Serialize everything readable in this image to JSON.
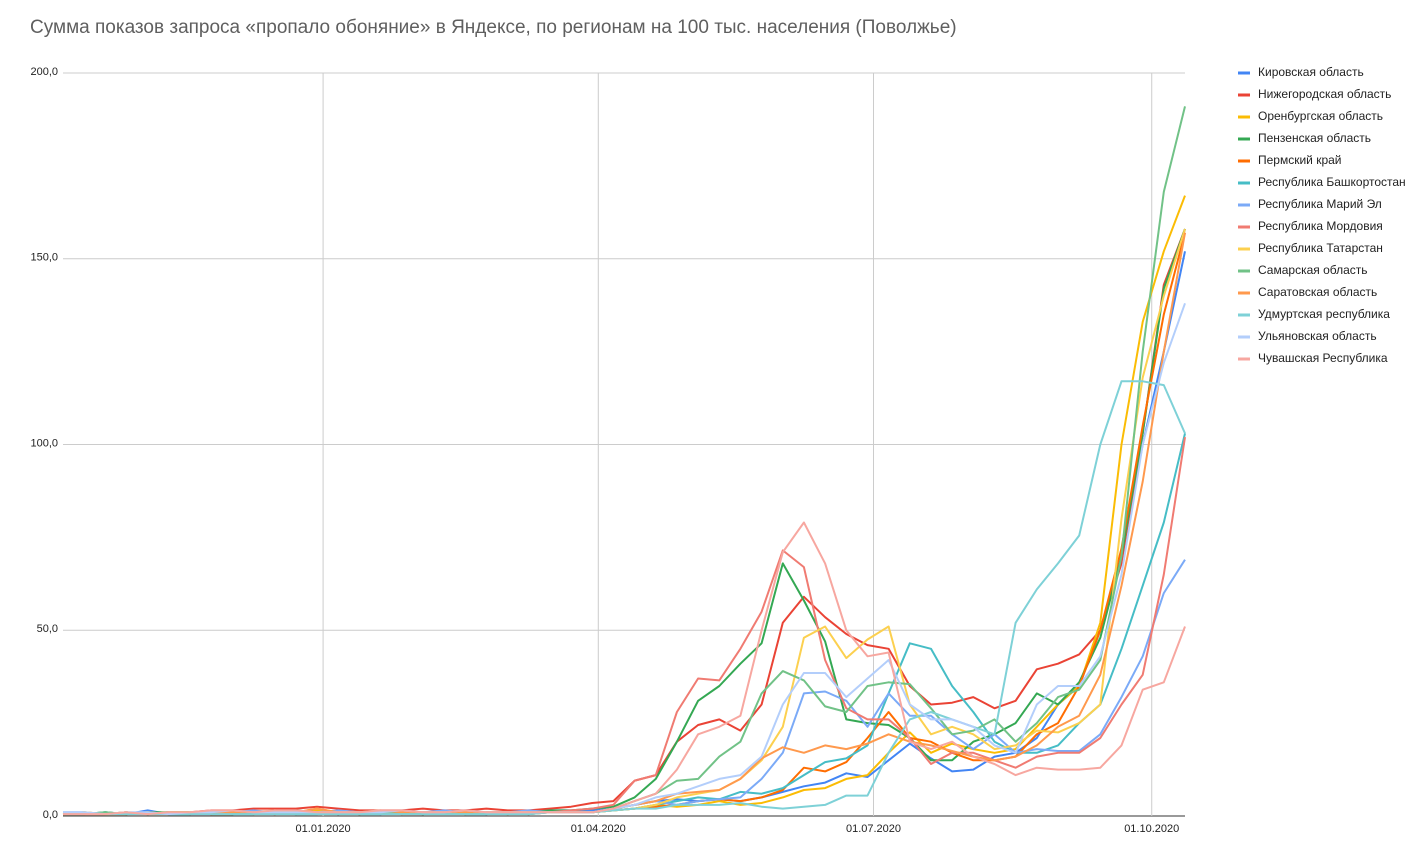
{
  "chart_data": {
    "type": "line",
    "title": "Сумма показов запроса «пропало обоняние» в Яндексе, по регионам на 100 тыс. населения (Поволжье)",
    "x": [
      "2019-10-07",
      "2019-10-14",
      "2019-10-21",
      "2019-10-28",
      "2019-11-04",
      "2019-11-11",
      "2019-11-18",
      "2019-11-25",
      "2019-12-02",
      "2019-12-09",
      "2019-12-16",
      "2019-12-23",
      "2019-12-30",
      "2020-01-06",
      "2020-01-13",
      "2020-01-20",
      "2020-01-27",
      "2020-02-03",
      "2020-02-10",
      "2020-02-17",
      "2020-02-24",
      "2020-03-02",
      "2020-03-09",
      "2020-03-16",
      "2020-03-23",
      "2020-03-30",
      "2020-04-06",
      "2020-04-13",
      "2020-04-20",
      "2020-04-27",
      "2020-05-04",
      "2020-05-11",
      "2020-05-18",
      "2020-05-25",
      "2020-06-01",
      "2020-06-08",
      "2020-06-15",
      "2020-06-22",
      "2020-06-29",
      "2020-07-06",
      "2020-07-13",
      "2020-07-20",
      "2020-07-27",
      "2020-08-03",
      "2020-08-10",
      "2020-08-17",
      "2020-08-24",
      "2020-08-31",
      "2020-09-07",
      "2020-09-14",
      "2020-09-21",
      "2020-09-28",
      "2020-10-05",
      "2020-10-12"
    ],
    "xlim": [
      "2019-10-07",
      "2020-10-12"
    ],
    "xticks": [
      {
        "value": "2020-01-01",
        "label": "01.01.2020"
      },
      {
        "value": "2020-04-01",
        "label": "01.04.2020"
      },
      {
        "value": "2020-07-01",
        "label": "01.07.2020"
      },
      {
        "value": "2020-10-01",
        "label": "01.10.2020"
      }
    ],
    "ylim": [
      0,
      200
    ],
    "yticks": [
      {
        "value": 0,
        "label": "0,0"
      },
      {
        "value": 50,
        "label": "50,0"
      },
      {
        "value": 100,
        "label": "100,0"
      },
      {
        "value": 150,
        "label": "150,0"
      },
      {
        "value": 200,
        "label": "200,0"
      }
    ],
    "grid": true,
    "legend": "right",
    "series": [
      {
        "name": "Кировская область",
        "color": "#4285f4",
        "values": [
          0.5,
          0.5,
          1,
          0.5,
          1.5,
          0.5,
          0.5,
          0.5,
          0.5,
          1,
          1,
          1,
          1,
          0.5,
          1,
          0.5,
          1,
          1,
          1,
          1,
          0.5,
          1,
          1,
          1.5,
          1.5,
          1.5,
          2,
          3,
          4,
          4.5,
          4,
          4.5,
          4,
          5,
          6.5,
          8,
          9,
          11.5,
          10.5,
          15,
          19.5,
          15.5,
          12,
          12.5,
          16,
          17,
          21,
          30,
          35,
          50,
          70,
          100,
          125,
          152
        ]
      },
      {
        "name": "Нижегородская область",
        "color": "#ea4335",
        "values": [
          0.5,
          0.5,
          0.5,
          1,
          0.5,
          1,
          1,
          1.5,
          1.5,
          2,
          2,
          2,
          2.5,
          2,
          1.5,
          1.5,
          1.5,
          2,
          1.5,
          1.5,
          2,
          1.5,
          1.5,
          2,
          2.5,
          3.5,
          4,
          9.5,
          11,
          20,
          24.5,
          26,
          23,
          30,
          52,
          59,
          53.5,
          49,
          46,
          45,
          35,
          30,
          30.5,
          32,
          29,
          31,
          39.5,
          41,
          43.5,
          50,
          68,
          103,
          143,
          158
        ]
      },
      {
        "name": "Оренбургская область",
        "color": "#fbbc04",
        "values": [
          0.5,
          1,
          0.5,
          0.5,
          1,
          0.5,
          1,
          0.5,
          1,
          0.5,
          1,
          1,
          1.5,
          1,
          0.5,
          1,
          1,
          0.5,
          1,
          1,
          1,
          0.5,
          1,
          1,
          1,
          1,
          1.5,
          2,
          3,
          2.5,
          3,
          4,
          3,
          3.5,
          5,
          7,
          7.5,
          10,
          11,
          17,
          22.5,
          17,
          19.5,
          18,
          17,
          18,
          24,
          30,
          35,
          52,
          100,
          133,
          152,
          167
        ]
      },
      {
        "name": "Пензенская область",
        "color": "#34a853",
        "values": [
          0.5,
          0.5,
          1,
          0.5,
          1,
          1,
          1,
          0.5,
          0.5,
          1,
          1,
          1.5,
          1,
          0.5,
          1,
          1,
          1,
          0.5,
          1,
          1,
          1,
          1,
          1,
          1.5,
          1.5,
          2,
          2.5,
          5,
          10,
          20,
          31,
          35,
          41,
          46.5,
          68,
          58,
          47,
          26,
          25,
          24.5,
          21,
          15,
          15,
          20,
          22,
          25,
          33,
          30,
          36,
          48,
          70,
          103,
          142,
          158
        ]
      },
      {
        "name": "Пермский край",
        "color": "#ff6d01",
        "values": [
          0.5,
          0.5,
          0.5,
          1,
          0.5,
          0.5,
          1,
          0.5,
          0.5,
          1,
          0.5,
          1,
          1,
          1,
          0.5,
          1,
          0.5,
          1,
          1,
          0.5,
          1,
          1,
          0.5,
          1,
          1,
          1,
          1.5,
          2,
          2.5,
          3,
          4,
          4.5,
          4,
          5,
          7,
          13,
          12,
          14.5,
          21,
          28,
          21,
          20,
          17,
          15,
          15,
          16,
          22,
          25,
          35,
          50,
          72,
          105,
          135,
          157
        ]
      },
      {
        "name": "Республика Башкортостан",
        "color": "#46bdc6",
        "values": [
          0.5,
          0.5,
          0.5,
          0.5,
          1,
          0.5,
          0.5,
          1,
          0.5,
          0.5,
          1,
          0.5,
          0.5,
          1,
          0.5,
          0.5,
          1,
          0.5,
          1,
          0.5,
          0.5,
          1,
          0.5,
          1,
          1,
          1,
          1.5,
          2,
          3,
          4,
          5,
          4.5,
          6.5,
          6,
          7.5,
          11,
          14.5,
          15.5,
          19,
          33,
          46.5,
          45,
          35,
          28,
          20,
          17,
          17,
          19,
          25,
          30,
          45,
          62,
          79,
          103
        ]
      },
      {
        "name": "Республика Марий Эл",
        "color": "#7baaf7",
        "values": [
          1,
          1,
          0.5,
          1,
          0.5,
          1,
          0.5,
          1,
          1,
          1.5,
          1,
          1,
          1,
          1.5,
          1,
          1,
          1,
          1,
          1.5,
          1,
          1,
          1,
          1.5,
          1,
          1,
          1,
          2,
          3,
          4,
          3,
          4,
          4.5,
          5,
          10,
          17,
          33,
          33.5,
          31,
          24,
          33,
          27,
          27,
          22,
          18,
          22,
          17,
          18,
          17.5,
          17.5,
          22,
          32,
          43,
          60,
          69
        ]
      },
      {
        "name": "Республика Мордовия",
        "color": "#f07b72",
        "values": [
          0.5,
          0.5,
          0.5,
          0.5,
          0.5,
          1,
          0.5,
          0.5,
          1,
          1,
          0.5,
          1,
          1,
          0.5,
          1,
          1,
          0.5,
          0.5,
          1,
          1,
          0.5,
          1,
          1,
          1,
          1.5,
          2,
          3,
          9.5,
          11,
          28,
          37,
          36.5,
          45,
          55,
          71.5,
          67,
          42,
          29,
          26,
          26,
          21,
          14,
          17,
          17,
          15,
          13,
          16,
          17,
          17,
          21,
          30,
          38,
          65,
          102
        ]
      },
      {
        "name": "Республика Татарстан",
        "color": "#fcd04f",
        "values": [
          0.5,
          1,
          0.5,
          1,
          0.5,
          1,
          1,
          1,
          1,
          1,
          1.5,
          1,
          2,
          1,
          1,
          1,
          1,
          1,
          1,
          1,
          1,
          1,
          1,
          1,
          1,
          1,
          1.5,
          2,
          3,
          5,
          6,
          7,
          10,
          15,
          24,
          48,
          51,
          42.5,
          47.5,
          51,
          30,
          22,
          24,
          22,
          18,
          19,
          23,
          22.5,
          25,
          30,
          80,
          118,
          140,
          158
        ]
      },
      {
        "name": "Самарская область",
        "color": "#71c287",
        "values": [
          0.5,
          0.5,
          1,
          0.5,
          1,
          0.5,
          0.5,
          1,
          0.5,
          1,
          1,
          0.5,
          1,
          1,
          0.5,
          1,
          1,
          0.5,
          1,
          1,
          1,
          0.5,
          1,
          1,
          1,
          1,
          2,
          4,
          6,
          9.5,
          10,
          16,
          20,
          33,
          39,
          36.5,
          29.5,
          28,
          35,
          36,
          35.5,
          29,
          22,
          23,
          26,
          20,
          25,
          32,
          34,
          42,
          70,
          125,
          168,
          191
        ]
      },
      {
        "name": "Саратовская область",
        "color": "#ff994d",
        "values": [
          0.5,
          0.5,
          0.5,
          0.5,
          1,
          0.5,
          1,
          0.5,
          1,
          1,
          1,
          1,
          2,
          1,
          1,
          1.5,
          1,
          1,
          1,
          1,
          1,
          1,
          1,
          1,
          1,
          1,
          2,
          3,
          4,
          6,
          6.5,
          7,
          10,
          15.5,
          18.5,
          17,
          19,
          18,
          19.5,
          22,
          20,
          19,
          17.5,
          16,
          15,
          16,
          19,
          24,
          27,
          38,
          62,
          90,
          125,
          157
        ]
      },
      {
        "name": "Удмуртская республика",
        "color": "#7ed1d7",
        "values": [
          0.5,
          0.5,
          0.5,
          0.5,
          0.5,
          0.5,
          0.5,
          0.5,
          0.5,
          0.5,
          0.5,
          0.5,
          0.5,
          0.5,
          0.5,
          0.5,
          0.5,
          0.5,
          0.5,
          0.5,
          0.5,
          0.5,
          0.5,
          1,
          1,
          1,
          1.5,
          2,
          2,
          3,
          3,
          3,
          3.5,
          2.5,
          2,
          2.5,
          3,
          5.5,
          5.5,
          17,
          26,
          28,
          26,
          24,
          22,
          52,
          61,
          68,
          75.5,
          100,
          117,
          117,
          116,
          103
        ]
      },
      {
        "name": "Ульяновская область",
        "color": "#b3cefb",
        "values": [
          1,
          1,
          0.5,
          1,
          1,
          0.5,
          1,
          1,
          1.5,
          1,
          1,
          1,
          1,
          1,
          1,
          1,
          1.5,
          1,
          1,
          1.5,
          1,
          1,
          1,
          1,
          1,
          1,
          2,
          3,
          5,
          6,
          8,
          10,
          11,
          16,
          30,
          38.5,
          38.5,
          32,
          37,
          42,
          30,
          26,
          26,
          24,
          19,
          17,
          30,
          35,
          35,
          43,
          65,
          100,
          122,
          138
        ]
      },
      {
        "name": "Чувашская Республика",
        "color": "#f7a7a0",
        "values": [
          0.5,
          0.5,
          0.5,
          1,
          0.5,
          1,
          1,
          1.5,
          1.5,
          1,
          1.5,
          1.5,
          1,
          1,
          1,
          1.5,
          1.5,
          1,
          1,
          1.5,
          1,
          1,
          1,
          1,
          1,
          1,
          2,
          4,
          6,
          12.5,
          22,
          24,
          27,
          50,
          71,
          79,
          68,
          50,
          43,
          44,
          20,
          18,
          20,
          16,
          14,
          11,
          13,
          12.5,
          12.5,
          13,
          19,
          34,
          36,
          51
        ]
      }
    ]
  }
}
